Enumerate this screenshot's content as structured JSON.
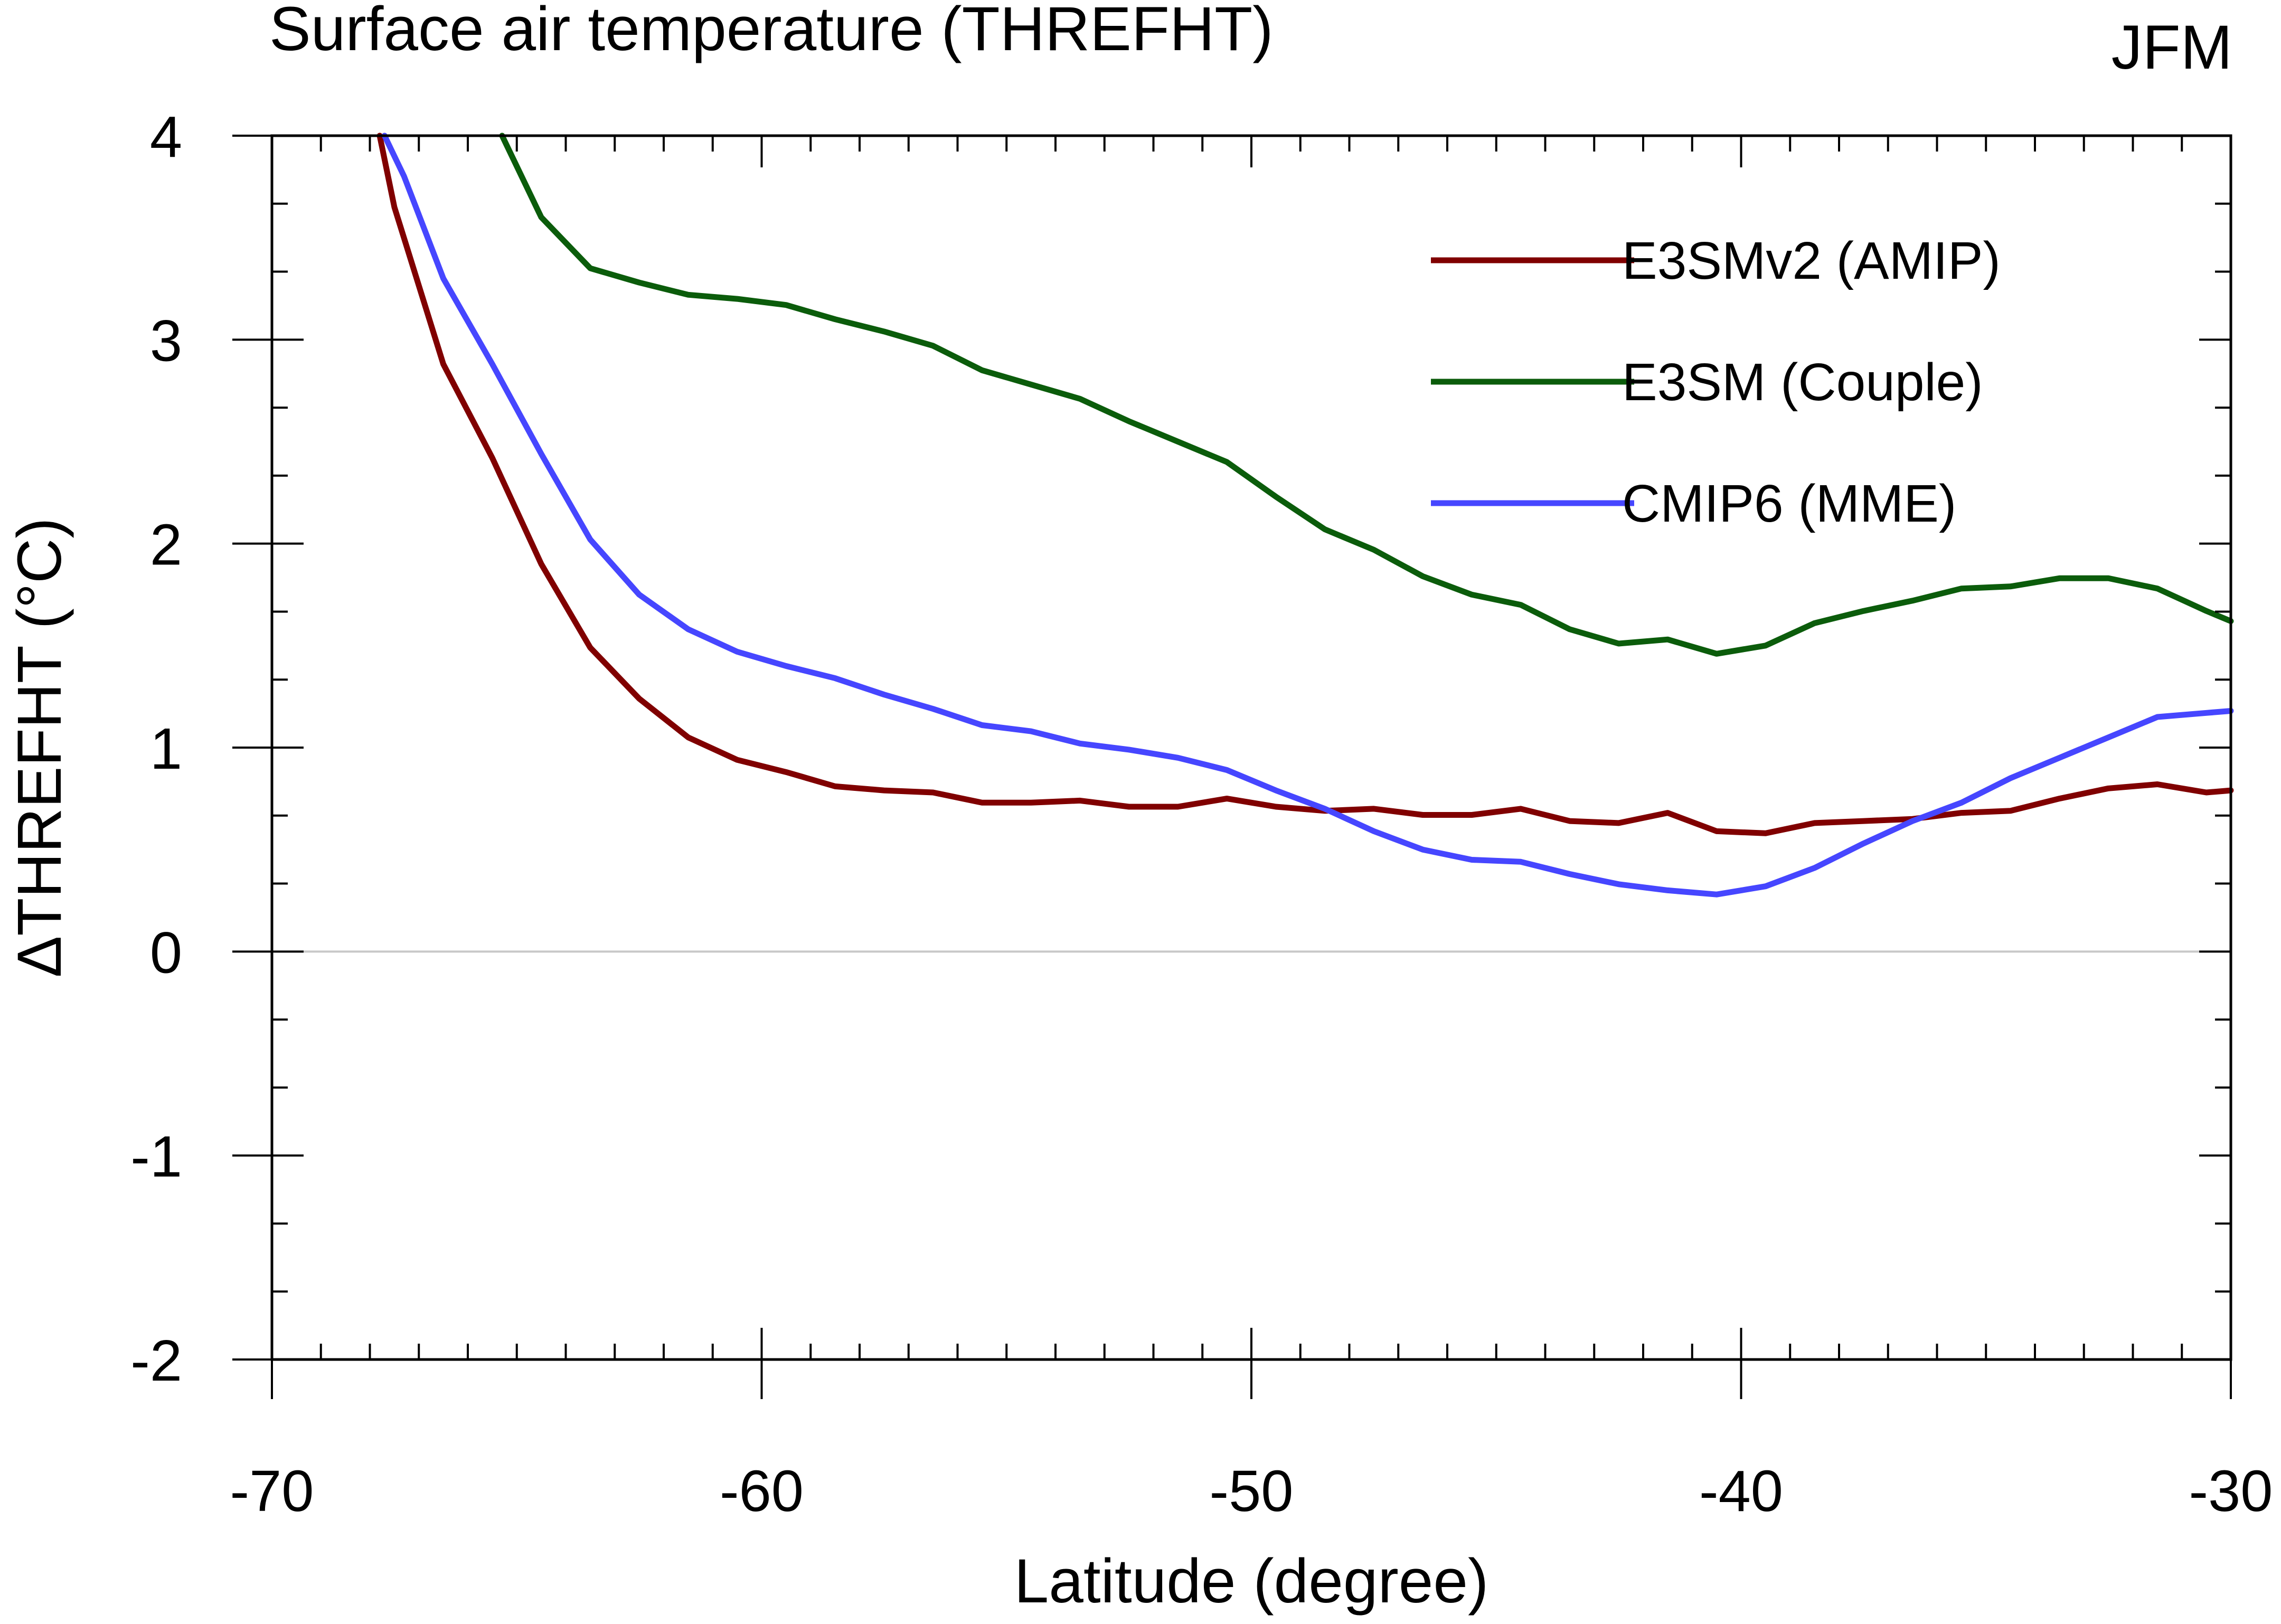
{
  "chart_data": {
    "type": "line",
    "title": "Surface air temperature (THREFHT)",
    "season": "JFM",
    "xlabel": "Latitude (degree)",
    "ylabel": "ΔTHREFHT (°C)",
    "xlim": [
      -70,
      -30
    ],
    "ylim": [
      -2,
      4
    ],
    "xticks": [
      -70,
      -60,
      -50,
      -40,
      -30
    ],
    "xtick_labels": [
      "-70",
      "-60",
      "-50",
      "-40",
      "-30"
    ],
    "yticks": [
      -2,
      -1,
      0,
      1,
      2,
      3,
      4
    ],
    "ytick_labels": [
      "-2",
      "-1",
      "0",
      "1",
      "2",
      "3",
      "4"
    ],
    "zero_line": true,
    "legend_position": "top-right",
    "series": [
      {
        "name": "E3SMv2 (AMIP)",
        "color": "#800000",
        "x": [
          -67.8,
          -67.5,
          -66.5,
          -65.5,
          -64.5,
          -63.5,
          -62.5,
          -61.5,
          -60.5,
          -59.5,
          -58.5,
          -57.5,
          -56.5,
          -55.5,
          -54.5,
          -53.5,
          -52.5,
          -51.5,
          -50.5,
          -49.5,
          -48.5,
          -47.5,
          -46.5,
          -45.5,
          -44.5,
          -43.5,
          -42.5,
          -41.5,
          -40.5,
          -39.5,
          -38.5,
          -37.5,
          -36.5,
          -35.5,
          -34.5,
          -33.5,
          -32.5,
          -31.5,
          -30.5,
          -30
        ],
        "y": [
          4.0,
          3.65,
          2.88,
          2.42,
          1.9,
          1.49,
          1.24,
          1.05,
          0.94,
          0.88,
          0.81,
          0.79,
          0.78,
          0.73,
          0.73,
          0.74,
          0.71,
          0.71,
          0.75,
          0.71,
          0.69,
          0.7,
          0.67,
          0.67,
          0.7,
          0.64,
          0.63,
          0.68,
          0.59,
          0.58,
          0.63,
          0.64,
          0.65,
          0.68,
          0.69,
          0.75,
          0.8,
          0.82,
          0.78,
          0.79
        ]
      },
      {
        "name": "E3SM (Couple)",
        "color": "#0b5c0b",
        "x": [
          -65.3,
          -64.5,
          -63.5,
          -62.5,
          -61.5,
          -60.5,
          -59.5,
          -58.5,
          -57.5,
          -56.5,
          -55.5,
          -54.5,
          -53.5,
          -52.5,
          -51.5,
          -50.5,
          -49.5,
          -48.5,
          -47.5,
          -46.5,
          -45.5,
          -44.5,
          -43.5,
          -42.5,
          -41.5,
          -40.5,
          -39.5,
          -38.5,
          -37.5,
          -36.5,
          -35.5,
          -34.5,
          -33.5,
          -32.5,
          -31.5,
          -30.5,
          -30
        ],
        "y": [
          4.0,
          3.6,
          3.35,
          3.28,
          3.22,
          3.2,
          3.17,
          3.1,
          3.04,
          2.97,
          2.85,
          2.78,
          2.71,
          2.6,
          2.5,
          2.4,
          2.23,
          2.07,
          1.97,
          1.84,
          1.75,
          1.7,
          1.58,
          1.51,
          1.53,
          1.46,
          1.5,
          1.61,
          1.67,
          1.72,
          1.78,
          1.79,
          1.83,
          1.83,
          1.78,
          1.67,
          1.62
        ]
      },
      {
        "name": "CMIP6 (MME)",
        "color": "#4646ff",
        "x": [
          -67.7,
          -67.3,
          -66.5,
          -65.5,
          -64.5,
          -63.5,
          -62.5,
          -61.5,
          -60.5,
          -59.5,
          -58.5,
          -57.5,
          -56.5,
          -55.5,
          -54.5,
          -53.5,
          -52.5,
          -51.5,
          -50.5,
          -49.5,
          -48.5,
          -47.5,
          -46.5,
          -45.5,
          -44.5,
          -43.5,
          -42.5,
          -41.5,
          -40.5,
          -39.5,
          -38.5,
          -37.5,
          -36.5,
          -35.5,
          -34.5,
          -33.5,
          -32.5,
          -31.5,
          -30.5,
          -30
        ],
        "y": [
          4.0,
          3.8,
          3.3,
          2.88,
          2.44,
          2.02,
          1.75,
          1.58,
          1.47,
          1.4,
          1.34,
          1.26,
          1.19,
          1.11,
          1.08,
          1.02,
          0.99,
          0.95,
          0.89,
          0.79,
          0.7,
          0.59,
          0.5,
          0.45,
          0.44,
          0.38,
          0.33,
          0.3,
          0.28,
          0.32,
          0.41,
          0.53,
          0.64,
          0.73,
          0.85,
          0.95,
          1.05,
          1.15,
          1.17,
          1.18
        ]
      }
    ]
  }
}
